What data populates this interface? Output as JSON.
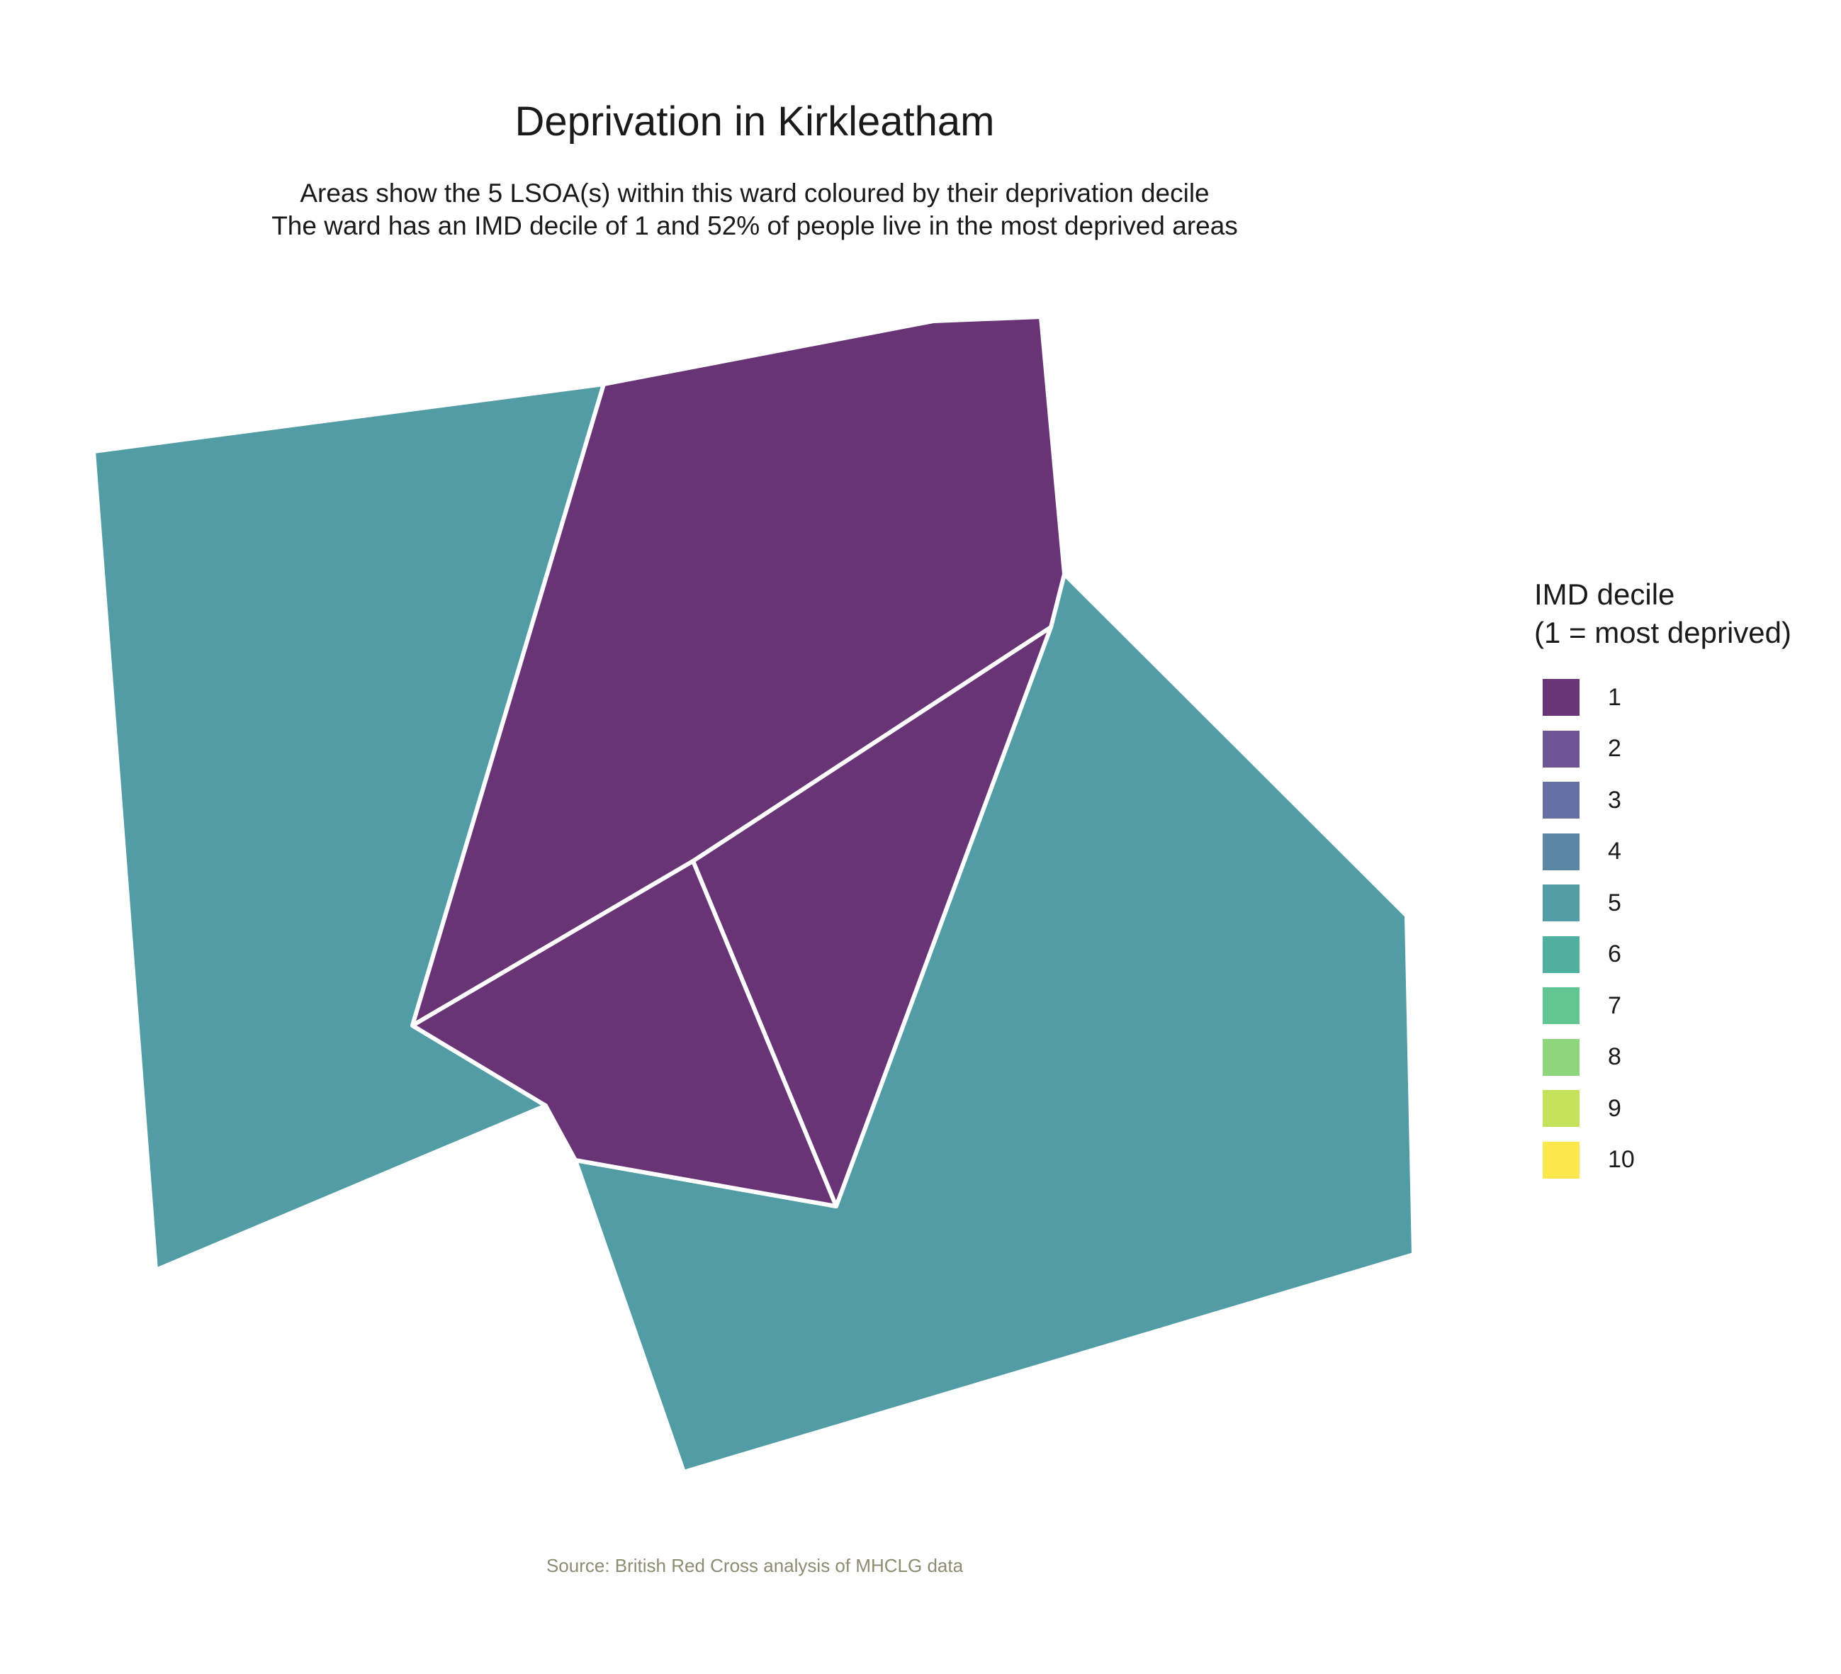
{
  "title": "Deprivation in Kirkleatham",
  "subtitle": [
    "Areas show the 5 LSOA(s) within this ward coloured by their deprivation decile",
    "The ward has an IMD decile of 1 and 52% of people live in the most deprived areas"
  ],
  "caption": "Source: British Red Cross analysis of MHCLG data",
  "legend": {
    "title": [
      "IMD decile",
      "(1 = most deprived)"
    ],
    "items": [
      {
        "label": "1",
        "color": "#683476"
      },
      {
        "label": "2",
        "color": "#6e5596"
      },
      {
        "label": "3",
        "color": "#6670a4"
      },
      {
        "label": "4",
        "color": "#5b86a4"
      },
      {
        "label": "5",
        "color": "#529ca6"
      },
      {
        "label": "6",
        "color": "#50b0a0"
      },
      {
        "label": "7",
        "color": "#62c693"
      },
      {
        "label": "8",
        "color": "#8dd67c"
      },
      {
        "label": "9",
        "color": "#c4e35a"
      },
      {
        "label": "10",
        "color": "#fbe84c"
      }
    ]
  },
  "map_data": {
    "areas": [
      {
        "id": "lsoa-west",
        "decile": 5
      },
      {
        "id": "lsoa-north",
        "decile": 1
      },
      {
        "id": "lsoa-south-triangle",
        "decile": 1
      },
      {
        "id": "lsoa-east-triangle",
        "decile": 1
      },
      {
        "id": "lsoa-southeast",
        "decile": 5
      }
    ]
  }
}
